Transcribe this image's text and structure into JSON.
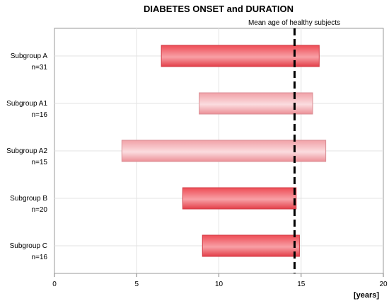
{
  "chart_data": {
    "type": "bar",
    "orientation": "horizontal-floating",
    "title": "DIABETES ONSET and DURATION",
    "x_unit": "[years]",
    "xlim": [
      0,
      20
    ],
    "x_ticks": [
      "0",
      "5",
      "10",
      "15",
      "20"
    ],
    "grid": true,
    "categories": [
      {
        "label": "Subgroup A",
        "n": "n=31",
        "start": 6.5,
        "end": 16.1,
        "style": "dark"
      },
      {
        "label": "Subgroup A1",
        "n": "n=16",
        "start": 8.8,
        "end": 15.7,
        "style": "light"
      },
      {
        "label": "Subgroup A2",
        "n": "n=15",
        "start": 4.1,
        "end": 16.5,
        "style": "light"
      },
      {
        "label": "Subgroup B",
        "n": "n=20",
        "start": 7.8,
        "end": 14.7,
        "style": "dark"
      },
      {
        "label": "Subgroup C",
        "n": "n=16",
        "start": 9.0,
        "end": 14.9,
        "style": "dark"
      }
    ],
    "reference_line": {
      "label": "Mean age of healthy subjects",
      "x": 14.6
    },
    "colors": {
      "dark_bar": "#ee4c55",
      "light_bar": "#f2a9ae",
      "reference": "#000000",
      "grid": "#e3e3e3",
      "frame": "#9a9a9a"
    }
  }
}
